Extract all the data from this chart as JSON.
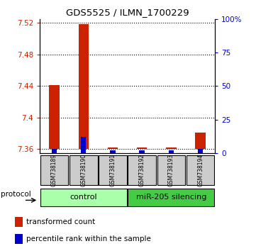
{
  "title": "GDS5525 / ILMN_1700229",
  "samples": [
    "GSM738189",
    "GSM738190",
    "GSM738191",
    "GSM738192",
    "GSM738193",
    "GSM738194"
  ],
  "red_values": [
    7.441,
    7.518,
    7.362,
    7.362,
    7.362,
    7.381
  ],
  "blue_values_pct": [
    3,
    12,
    2,
    2,
    2,
    3
  ],
  "ylim_left": [
    7.355,
    7.525
  ],
  "ylim_right": [
    0,
    100
  ],
  "yticks_left": [
    7.36,
    7.4,
    7.44,
    7.48,
    7.52
  ],
  "ytick_left_labels": [
    "7.36",
    "7.4",
    "7.44",
    "7.48",
    "7.52"
  ],
  "yticks_right": [
    0,
    25,
    50,
    75,
    100
  ],
  "ytick_right_labels": [
    "0",
    "25",
    "50",
    "75",
    "100%"
  ],
  "bar_width": 0.35,
  "blue_bar_width": 0.18,
  "red_color": "#cc2200",
  "blue_color": "#0000cc",
  "baseline": 7.36,
  "legend_red": "transformed count",
  "legend_blue": "percentile rank within the sample",
  "protocol_label": "protocol",
  "gray_bg": "#cccccc",
  "control_bg": "#aaffaa",
  "mirna_bg": "#44cc44",
  "white": "#ffffff"
}
